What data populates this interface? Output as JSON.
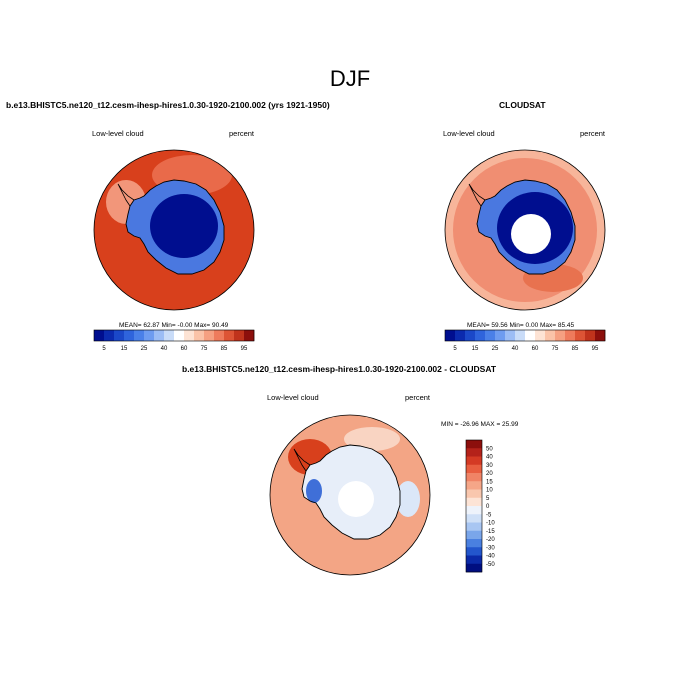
{
  "figure": {
    "title": "DJF",
    "colors": {
      "ocean_high": "#d8401c",
      "ocean_mid": "#f08e72",
      "ice_low": "#000e8f",
      "ice_mid": "#4a78e0",
      "pole_hole": "#ffffff",
      "coast": "#000000"
    }
  },
  "chart_data": [
    {
      "type": "heatmap",
      "projection": "south polar stereographic",
      "title": "b.e13.BHISTC5.ne120_t12.cesm-ihesp-hires1.0.30-1920-2100.002 (yrs 1921-1950)",
      "left_label": "Low-level cloud",
      "right_label": "percent",
      "stats": {
        "mean": "62.87",
        "min": "-0.00",
        "max": "90.49",
        "text": "MEAN=  62.87  Min=  -0.00  Max=  90.49"
      },
      "colorbar": {
        "orientation": "horizontal",
        "levels": [
          5,
          10,
          15,
          20,
          25,
          30,
          40,
          50,
          60,
          70,
          75,
          80,
          85,
          90,
          95
        ],
        "tick_labels": [
          "5",
          "15",
          "25",
          "40",
          "60",
          "75",
          "85",
          "95"
        ],
        "colors": [
          "#000e8f",
          "#0b2aae",
          "#1b48c8",
          "#2f64dc",
          "#4a80e8",
          "#6e9cf0",
          "#9cbdf5",
          "#c9dcf8",
          "#ffffff",
          "#fde3d4",
          "#fac3a8",
          "#f5a081",
          "#ee7b5c",
          "#dd5435",
          "#c0331c",
          "#8c0f0c"
        ]
      },
      "polar_hole": false
    },
    {
      "type": "heatmap",
      "projection": "south polar stereographic",
      "title": "CLOUDSAT",
      "left_label": "Low-level cloud",
      "right_label": "percent",
      "stats": {
        "mean": "59.56",
        "min": "0.00",
        "max": "85.45",
        "text": "MEAN=  59.56  Min=   0.00  Max=  85.45"
      },
      "colorbar": {
        "orientation": "horizontal",
        "levels": [
          5,
          10,
          15,
          20,
          25,
          30,
          40,
          50,
          60,
          70,
          75,
          80,
          85,
          90,
          95
        ],
        "tick_labels": [
          "5",
          "15",
          "25",
          "40",
          "60",
          "75",
          "85",
          "95"
        ],
        "colors": [
          "#000e8f",
          "#0b2aae",
          "#1b48c8",
          "#2f64dc",
          "#4a80e8",
          "#6e9cf0",
          "#9cbdf5",
          "#c9dcf8",
          "#ffffff",
          "#fde3d4",
          "#fac3a8",
          "#f5a081",
          "#ee7b5c",
          "#dd5435",
          "#c0331c",
          "#8c0f0c"
        ]
      },
      "polar_hole": true
    },
    {
      "type": "heatmap",
      "projection": "south polar stereographic",
      "title": "b.e13.BHISTC5.ne120_t12.cesm-ihesp-hires1.0.30-1920-2100.002 - CLOUDSAT",
      "left_label": "Low-level cloud",
      "right_label": "percent",
      "stats": {
        "min": "-26.96",
        "max": "25.99",
        "text": "MIN = -26.96 MAX =  25.99"
      },
      "colorbar": {
        "orientation": "vertical",
        "levels": [
          50,
          40,
          30,
          20,
          15,
          10,
          5,
          0,
          -5,
          -10,
          -15,
          -20,
          -30,
          -40,
          -50
        ],
        "tick_labels": [
          "50",
          "40",
          "30",
          "20",
          "15",
          "10",
          "5",
          "0",
          "-5",
          "-10",
          "-15",
          "-20",
          "-30",
          "-40",
          "-50"
        ],
        "colors": [
          "#8c0f0c",
          "#b4221a",
          "#d43a24",
          "#e85e40",
          "#f08466",
          "#f5a688",
          "#f9c7ae",
          "#fde4d6",
          "#eef3fb",
          "#cfe0f7",
          "#a8c6f2",
          "#7aa6ea",
          "#4a80e0",
          "#2356cc",
          "#0b2aa8",
          "#000e80"
        ]
      },
      "polar_hole": true
    }
  ]
}
